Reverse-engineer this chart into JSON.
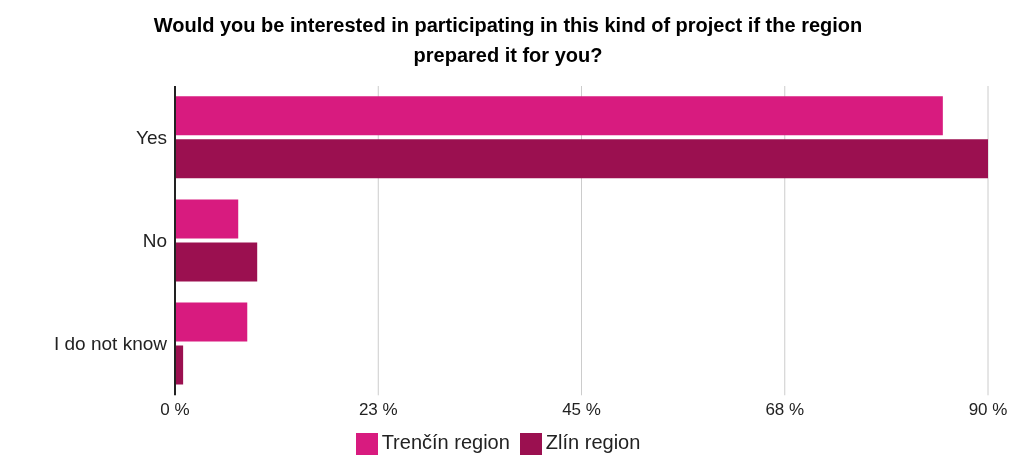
{
  "chart_data": {
    "type": "bar",
    "orientation": "horizontal",
    "title": "Would you be interested in participating in this kind of project if the region prepared it for you?",
    "categories": [
      "Yes",
      "No",
      "I do not know"
    ],
    "series": [
      {
        "name": "Trenčín region",
        "color": "#d81b7f",
        "values": [
          85,
          7,
          8
        ]
      },
      {
        "name": "Zlín region",
        "color": "#9b1050",
        "values": [
          90,
          9.1,
          0.9
        ]
      }
    ],
    "xlim": [
      0,
      90
    ],
    "xticks": [
      {
        "value": 0,
        "label": "0 %"
      },
      {
        "value": 22.5,
        "label": "23 %"
      },
      {
        "value": 45,
        "label": "45 %"
      },
      {
        "value": 67.5,
        "label": "68 %"
      },
      {
        "value": 90,
        "label": "90 %"
      }
    ],
    "grid": "x",
    "legend": "bottom"
  }
}
